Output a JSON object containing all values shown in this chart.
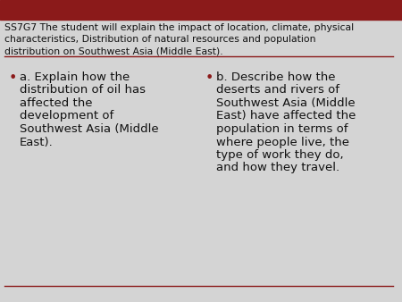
{
  "bg_color": "#d4d4d4",
  "header_bar_color": "#8b1a1a",
  "header_text_line1": "SS7G7 The student will explain the impact of location, climate, physical",
  "header_text_line2": "characteristics, Distribution of natural resources and population",
  "header_text_line3": "distribution on Southwest Asia (Middle East).",
  "header_text_color": "#111111",
  "header_font_size": 7.8,
  "divider_color": "#8b1a1a",
  "bullet_color": "#8b1a1a",
  "bullet_text_color": "#111111",
  "bullet_font_size": 9.5,
  "bullet_a_lines": [
    "a. Explain how the",
    "distribution of oil has",
    "affected the",
    "development of",
    "Southwest Asia (Middle",
    "East)."
  ],
  "bullet_b_lines": [
    "b. Describe how the",
    "deserts and rivers of",
    "Southwest Asia (Middle",
    "East) have affected the",
    "population in terms of",
    "where people live, the",
    "type of work they do,",
    "and how they travel."
  ]
}
